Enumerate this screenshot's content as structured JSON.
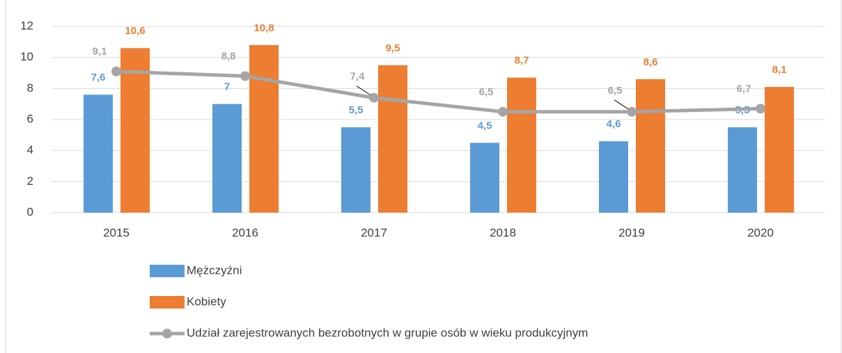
{
  "chart_data": {
    "type": "bar",
    "categories": [
      "2015",
      "2016",
      "2017",
      "2018",
      "2019",
      "2020"
    ],
    "series": [
      {
        "name": "Mężczyźni",
        "type": "bar",
        "color": "#5b9bd5",
        "values": [
          7.6,
          7,
          5.5,
          4.5,
          4.6,
          5.5
        ],
        "value_labels": [
          "7,6",
          "7",
          "5,5",
          "4,5",
          "4,6",
          "5,5"
        ]
      },
      {
        "name": "Kobiety",
        "type": "bar",
        "color": "#ed7d31",
        "values": [
          10.6,
          10.8,
          9.5,
          8.7,
          8.6,
          8.1
        ],
        "value_labels": [
          "10,6",
          "10,8",
          "9,5",
          "8,7",
          "8,6",
          "8,1"
        ]
      },
      {
        "name": "Udział zarejestrowanych bezrobotnych w grupie osób w wieku produkcyjnym",
        "type": "line",
        "color": "#a5a5a5",
        "values": [
          9.1,
          8.8,
          7.4,
          6.5,
          6.5,
          6.7
        ],
        "value_labels": [
          "9,1",
          "8,8",
          "7,4",
          "6,5",
          "6,5",
          "6,7"
        ]
      }
    ],
    "ylim": [
      0,
      12
    ],
    "yticks": [
      0,
      2,
      4,
      6,
      8,
      10,
      12
    ],
    "grid": true,
    "legend": "bottom"
  }
}
